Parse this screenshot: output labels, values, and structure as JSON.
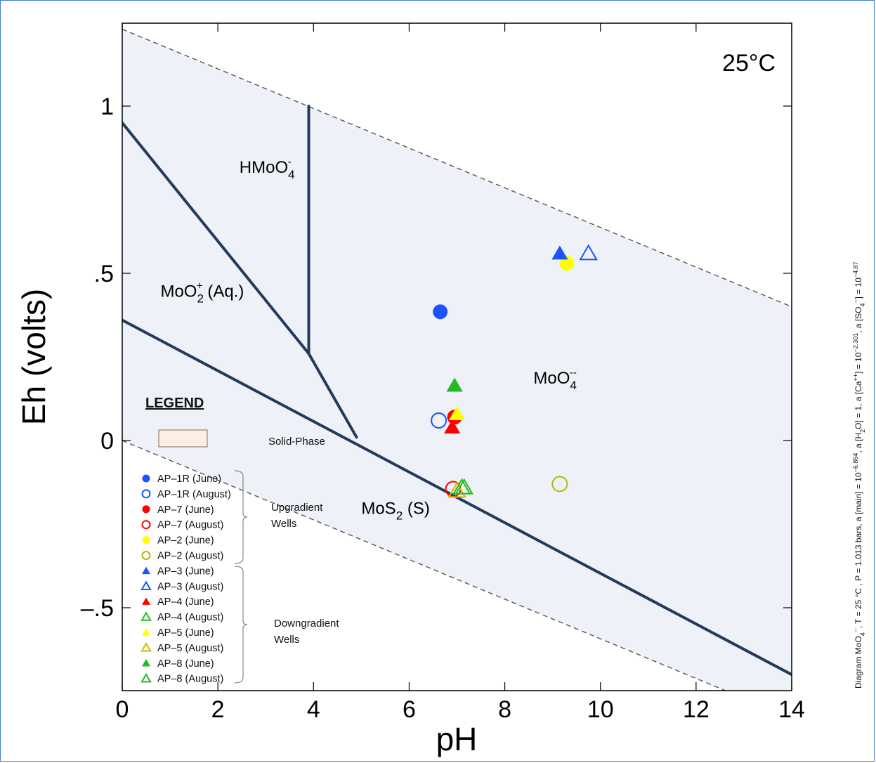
{
  "chart_data": {
    "type": "scatter",
    "title": "25°C",
    "xlabel": "pH",
    "ylabel": "Eh (volts)",
    "xlim": [
      0,
      14
    ],
    "ylim": [
      -0.75,
      1.25
    ],
    "xticks": [
      0,
      2,
      4,
      6,
      8,
      10,
      12,
      14
    ],
    "xtick_labels": [
      "0",
      "2",
      "4",
      "6",
      "8",
      "10",
      "12",
      "14"
    ],
    "yticks": [
      1,
      0.5,
      0,
      -0.5
    ],
    "ytick_labels": [
      "1",
      ".5",
      "0",
      "–.5"
    ],
    "water_stability_upper": {
      "x": [
        0,
        14
      ],
      "y": [
        1.23,
        0.4
      ]
    },
    "water_stability_lower": {
      "x": [
        0,
        14
      ],
      "y": [
        0.0,
        -0.83
      ]
    },
    "boundaries": [
      {
        "x": [
          0,
          3.9
        ],
        "y": [
          0.95,
          0.26
        ]
      },
      {
        "x": [
          3.9,
          3.9
        ],
        "y": [
          0.26,
          1.0
        ]
      },
      {
        "x": [
          3.9,
          4.9
        ],
        "y": [
          0.26,
          0.01
        ]
      },
      {
        "x": [
          0,
          14
        ],
        "y": [
          0.36,
          -0.7
        ]
      }
    ],
    "regions": [
      {
        "label": "HMoO4-",
        "base": "HMoO",
        "sub": "4",
        "sup": "-",
        "x": 2.45,
        "y": 0.8
      },
      {
        "label": "MoO2+ (Aq.)",
        "base": "MoO",
        "sub": "2",
        "sup": "+",
        "tail": " (Aq.)",
        "x": 0.8,
        "y": 0.43
      },
      {
        "label": "MoO4--",
        "base": "MoO",
        "sub": "4",
        "sup": "--",
        "x": 8.6,
        "y": 0.17
      },
      {
        "label": "MoS2 (S)",
        "base": "MoS",
        "sub": "2",
        "tail": " (S)",
        "x": 5.0,
        "y": -0.22
      }
    ],
    "series": [
      {
        "name": "AP–1R (June)",
        "marker": "circle",
        "filled": true,
        "color": "#1a53ff",
        "x": [
          6.65
        ],
        "y": [
          0.385
        ]
      },
      {
        "name": "AP–1R (August)",
        "marker": "circle",
        "filled": false,
        "color": "#1a53ff",
        "x": [
          6.62
        ],
        "y": [
          0.06
        ]
      },
      {
        "name": "AP–7 (June)",
        "marker": "circle",
        "filled": true,
        "color": "#ff0000",
        "x": [
          6.95
        ],
        "y": [
          0.07
        ]
      },
      {
        "name": "AP–7 (August)",
        "marker": "circle",
        "filled": false,
        "color": "#ff0000",
        "x": [
          6.92
        ],
        "y": [
          -0.145
        ]
      },
      {
        "name": "AP–2 (June)",
        "marker": "circle",
        "filled": true,
        "color": "#ffff00",
        "x": [
          9.3
        ],
        "y": [
          0.53
        ]
      },
      {
        "name": "AP–2 (August)",
        "marker": "circle",
        "filled": false,
        "color": "#b8b800",
        "x": [
          9.15
        ],
        "y": [
          -0.13
        ]
      },
      {
        "name": "AP–3 (June)",
        "marker": "triangle",
        "filled": true,
        "color": "#1a53ff",
        "x": [
          9.15
        ],
        "y": [
          0.56
        ]
      },
      {
        "name": "AP–3 (August)",
        "marker": "triangle",
        "filled": false,
        "color": "#1a53ff",
        "x": [
          9.75
        ],
        "y": [
          0.56
        ]
      },
      {
        "name": "AP–4 (June)",
        "marker": "triangle",
        "filled": true,
        "color": "#ff0000",
        "x": [
          6.9
        ],
        "y": [
          0.04
        ]
      },
      {
        "name": "AP–4 (August)",
        "marker": "triangle",
        "filled": false,
        "color": "#22bb22",
        "x": [
          7.1
        ],
        "y": [
          -0.14
        ]
      },
      {
        "name": "AP–5 (June)",
        "marker": "triangle",
        "filled": true,
        "color": "#ffff00",
        "x": [
          7.0
        ],
        "y": [
          0.08
        ]
      },
      {
        "name": "AP–5 (August)",
        "marker": "triangle",
        "filled": false,
        "color": "#d4b800",
        "x": [
          7.0
        ],
        "y": [
          -0.15
        ]
      },
      {
        "name": "AP–8 (June)",
        "marker": "triangle",
        "filled": true,
        "color": "#22bb22",
        "x": [
          6.95
        ],
        "y": [
          0.165
        ]
      },
      {
        "name": "AP–8 (August)",
        "marker": "triangle",
        "filled": false,
        "color": "#22bb22",
        "x": [
          7.15
        ],
        "y": [
          -0.14
        ]
      }
    ],
    "legend": {
      "title": "LEGEND",
      "swatch_label": "Solid-Phase",
      "group_labels": [
        {
          "line1": "Upgradient",
          "line2": "Wells"
        },
        {
          "line1": "Downgradient",
          "line2": "Wells"
        }
      ]
    },
    "side_note": "Diagram MoO4--, T = 25 °C , P = 1.013 bars, a [main] = 10^-6.854, a [H2O] = 1, a [Ca++] = 10^-2.301, a [SO4--] = 10^-4.87"
  },
  "colors": {
    "region_fill": "#eef1f7",
    "boundary_line": "#243a5a",
    "dashed_line": "#555555",
    "legend_swatch": "#fdeee4",
    "frame_border": "#3a7bd5"
  }
}
